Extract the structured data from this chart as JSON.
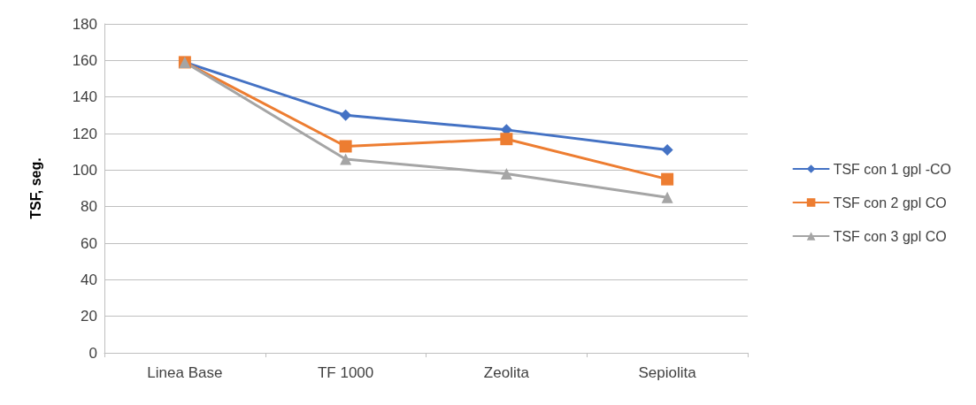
{
  "chart_data": {
    "type": "line",
    "ylabel": "TSF, seg.",
    "categories": [
      "Linea Base",
      "TF 1000",
      "Zeolita",
      "Sepiolita"
    ],
    "series": [
      {
        "name": "TSF con 1 gpl -CO",
        "color": "#4472c4",
        "marker": "diamond",
        "values": [
          159,
          130,
          122,
          111
        ]
      },
      {
        "name": "TSF con 2 gpl CO",
        "color": "#ed7d31",
        "marker": "square",
        "values": [
          159,
          113,
          117,
          95
        ]
      },
      {
        "name": "TSF con 3 gpl CO",
        "color": "#a5a5a5",
        "marker": "triangle",
        "values": [
          159,
          106,
          98,
          85
        ]
      }
    ],
    "ylim": [
      0,
      180
    ],
    "yticks": [
      0,
      20,
      40,
      60,
      80,
      100,
      120,
      140,
      160,
      180
    ],
    "grid": "y",
    "legend": "right",
    "line_style": "solid"
  }
}
